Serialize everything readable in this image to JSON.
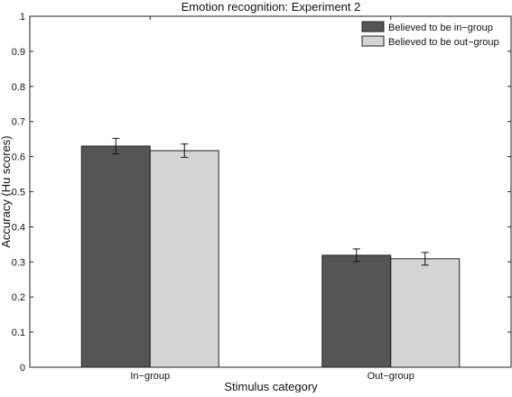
{
  "chart_data": {
    "type": "bar",
    "title": "Emotion recognition: Experiment 2",
    "xlabel": "Stimulus category",
    "ylabel": "Accuracy (Hu scores)",
    "categories": [
      "In−group",
      "Out−group"
    ],
    "ylim": [
      0,
      1
    ],
    "yticks": [
      "0",
      "0.1",
      "0.2",
      "0.3",
      "0.4",
      "0.5",
      "0.6",
      "0.7",
      "0.8",
      "0.9",
      "1"
    ],
    "legend_position": "top-right",
    "grid": false,
    "series": [
      {
        "name": "Believed to be in−group",
        "color": "#555555",
        "values": [
          0.63,
          0.319
        ],
        "errors": [
          0.022,
          0.018
        ]
      },
      {
        "name": "Believed to be out−group",
        "color": "#d4d4d4",
        "values": [
          0.617,
          0.309
        ],
        "errors": [
          0.019,
          0.018
        ]
      }
    ]
  }
}
